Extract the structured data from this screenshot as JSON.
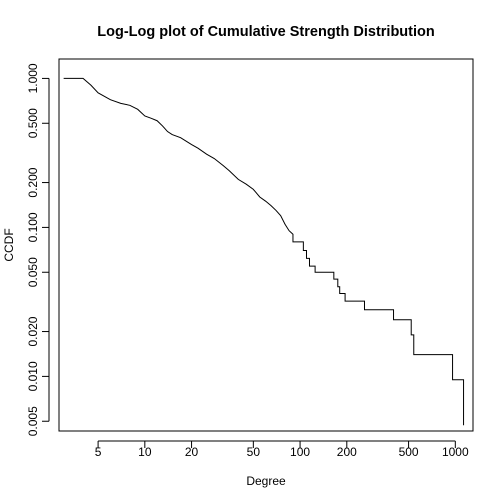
{
  "chart_data": {
    "type": "line",
    "title": "Log-Log plot of Cumulative Strength Distribution",
    "xlabel": "Degree",
    "ylabel": "CCDF",
    "xscale": "log",
    "yscale": "log",
    "xlim": [
      2.8,
      1300
    ],
    "ylim": [
      0.0043,
      1.35
    ],
    "x_ticks": [
      5,
      10,
      20,
      50,
      100,
      200,
      500,
      1000
    ],
    "x_tick_labels": [
      "5",
      "10",
      "20",
      "50",
      "100",
      "200",
      "500",
      "1000"
    ],
    "y_ticks": [
      0.005,
      0.01,
      0.02,
      0.05,
      0.1,
      0.2,
      0.5,
      1.0
    ],
    "y_tick_labels": [
      "0.005",
      "0.010",
      "0.020",
      "0.050",
      "0.100",
      "0.200",
      "0.500",
      "1.000"
    ],
    "grid": false,
    "series": [
      {
        "color": "#000000",
        "points": [
          [
            3.0,
            1.0
          ],
          [
            4.0,
            1.0
          ],
          [
            4.5,
            0.9
          ],
          [
            5.0,
            0.8
          ],
          [
            6.0,
            0.72
          ],
          [
            7.0,
            0.68
          ],
          [
            8.0,
            0.66
          ],
          [
            9.0,
            0.62
          ],
          [
            10.0,
            0.56
          ],
          [
            11.0,
            0.54
          ],
          [
            12.0,
            0.52
          ],
          [
            13.0,
            0.48
          ],
          [
            14.0,
            0.44
          ],
          [
            15.0,
            0.42
          ],
          [
            17.0,
            0.4
          ],
          [
            20.0,
            0.36
          ],
          [
            22.0,
            0.34
          ],
          [
            25.0,
            0.31
          ],
          [
            28.0,
            0.29
          ],
          [
            32.0,
            0.26
          ],
          [
            35.0,
            0.24
          ],
          [
            40.0,
            0.21
          ],
          [
            45.0,
            0.195
          ],
          [
            50.0,
            0.18
          ],
          [
            55.0,
            0.16
          ],
          [
            60.0,
            0.15
          ],
          [
            65.0,
            0.14
          ],
          [
            70.0,
            0.13
          ],
          [
            75.0,
            0.12
          ],
          [
            80.0,
            0.105
          ],
          [
            85.0,
            0.095
          ],
          [
            90.0,
            0.09
          ],
          [
            90.0,
            0.08
          ],
          [
            105.0,
            0.08
          ],
          [
            105.0,
            0.07
          ],
          [
            110.0,
            0.07
          ],
          [
            110.0,
            0.062
          ],
          [
            115.0,
            0.062
          ],
          [
            115.0,
            0.055
          ],
          [
            125.0,
            0.055
          ],
          [
            125.0,
            0.05
          ],
          [
            165.0,
            0.05
          ],
          [
            165.0,
            0.045
          ],
          [
            175.0,
            0.045
          ],
          [
            175.0,
            0.04
          ],
          [
            180.0,
            0.04
          ],
          [
            180.0,
            0.036
          ],
          [
            195.0,
            0.036
          ],
          [
            195.0,
            0.032
          ],
          [
            260.0,
            0.032
          ],
          [
            260.0,
            0.028
          ],
          [
            400.0,
            0.028
          ],
          [
            400.0,
            0.024
          ],
          [
            520.0,
            0.024
          ],
          [
            520.0,
            0.019
          ],
          [
            540.0,
            0.019
          ],
          [
            540.0,
            0.014
          ],
          [
            960.0,
            0.014
          ],
          [
            960.0,
            0.0095
          ],
          [
            1130.0,
            0.0095
          ],
          [
            1130.0,
            0.0047
          ]
        ]
      }
    ]
  }
}
